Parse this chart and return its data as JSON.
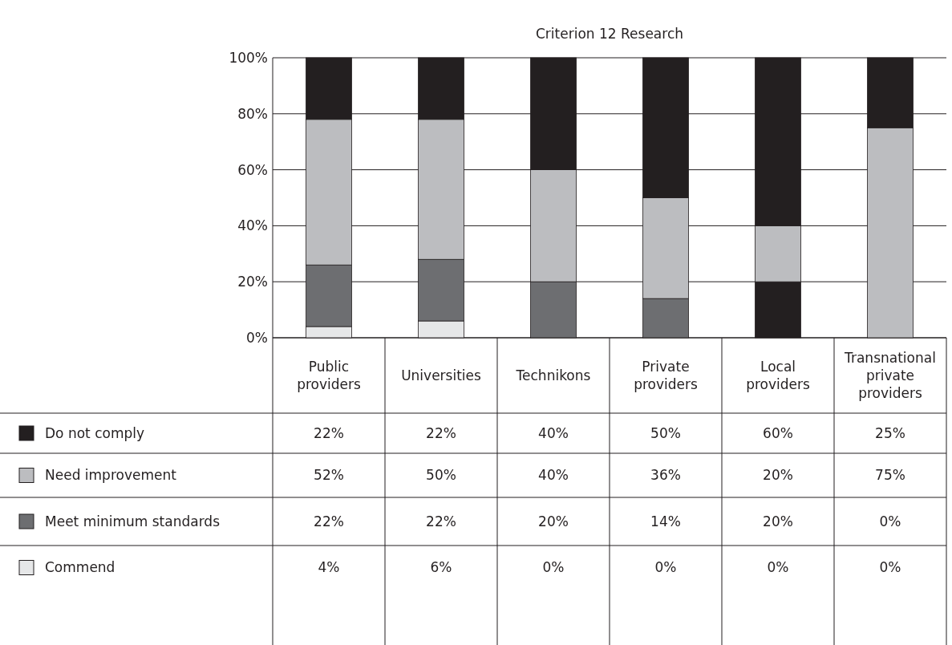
{
  "chart_data": {
    "type": "bar",
    "title": "Criterion 12 Research",
    "stacked": true,
    "legend": "bottom",
    "grid": "y",
    "categories": [
      "Public providers",
      "Universities",
      "Technikons",
      "Private providers",
      "Local providers",
      "Transnational private providers"
    ],
    "series": [
      {
        "name": "Commend",
        "color": "#e6e7e8",
        "values": [
          4,
          6,
          0,
          0,
          0,
          0
        ],
        "value_labels": [
          "4%",
          "6%",
          "0%",
          "0%",
          "0%",
          "0%"
        ]
      },
      {
        "name": "Meet minimum standards",
        "color": "#6d6e71",
        "colors": [
          "#6d6e71",
          "#6d6e71",
          "#6d6e71",
          "#6d6e71",
          "#231f20",
          "#6d6e71"
        ],
        "values": [
          22,
          22,
          20,
          14,
          20,
          0
        ],
        "value_labels": [
          "22%",
          "22%",
          "20%",
          "14%",
          "20%",
          "0%"
        ]
      },
      {
        "name": "Need improvement",
        "color": "#bcbdc0",
        "values": [
          52,
          50,
          40,
          36,
          20,
          75
        ],
        "value_labels": [
          "52%",
          "50%",
          "40%",
          "36%",
          "20%",
          "75%"
        ]
      },
      {
        "name": "Do not comply",
        "color": "#231f20",
        "values": [
          22,
          22,
          40,
          50,
          60,
          25
        ],
        "value_labels": [
          "22%",
          "22%",
          "40%",
          "50%",
          "60%",
          "25%"
        ]
      }
    ],
    "ylim": [
      0,
      100
    ],
    "yticks": [
      {
        "value": 0,
        "label": "0%"
      },
      {
        "value": 20,
        "label": "20%"
      },
      {
        "value": 40,
        "label": "40%"
      },
      {
        "value": 60,
        "label": "60%"
      },
      {
        "value": 80,
        "label": "80%"
      },
      {
        "value": 100,
        "label": "100%"
      }
    ]
  }
}
